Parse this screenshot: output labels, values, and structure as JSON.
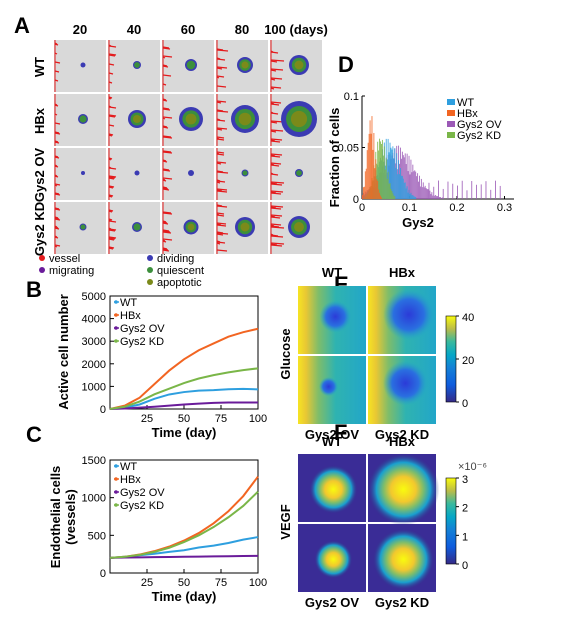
{
  "panelA": {
    "label": "A",
    "days": [
      "20",
      "40",
      "60",
      "80",
      "100 (days)"
    ],
    "rows": [
      "WT",
      "HBx",
      "Gys2 OV",
      "Gys2 KD"
    ],
    "legend": [
      {
        "label": "vessel",
        "color": "#e41a1c"
      },
      {
        "label": "migrating",
        "color": "#6a1b9a"
      },
      {
        "label": "dividing",
        "color": "#3b3bb3"
      },
      {
        "label": "quiescent",
        "color": "#3c8f3c"
      },
      {
        "label": "apoptotic",
        "color": "#7b8a1a"
      }
    ],
    "tumor_radius": [
      [
        2.5,
        4,
        6,
        8,
        10
      ],
      [
        5,
        9,
        12,
        14,
        18
      ],
      [
        2,
        2.5,
        3,
        3.5,
        4
      ],
      [
        3.5,
        5,
        7.5,
        10,
        11
      ]
    ]
  },
  "panelB": {
    "label": "B",
    "chart_data": {
      "type": "line",
      "xlabel": "Time (day)",
      "ylabel": "Active cell number",
      "xlim": [
        0,
        100
      ],
      "ylim": [
        0,
        5000
      ],
      "xticks": [
        25,
        50,
        75,
        100
      ],
      "yticks": [
        0,
        1000,
        2000,
        3000,
        4000,
        5000
      ],
      "x": [
        0,
        10,
        20,
        30,
        40,
        50,
        60,
        70,
        80,
        90,
        100
      ],
      "series": [
        {
          "name": "WT",
          "color": "#2e9fdf",
          "values": [
            0,
            60,
            200,
            450,
            640,
            760,
            800,
            840,
            880,
            880,
            880
          ]
        },
        {
          "name": "HBx",
          "color": "#f26522",
          "values": [
            0,
            150,
            500,
            1100,
            1700,
            2200,
            2600,
            2900,
            3200,
            3400,
            3550
          ]
        },
        {
          "name": "Gys2 OV",
          "color": "#6a1b9a",
          "values": [
            0,
            20,
            60,
            100,
            150,
            200,
            240,
            270,
            290,
            290,
            290
          ]
        },
        {
          "name": "Gys2 KD",
          "color": "#7ab648",
          "values": [
            0,
            100,
            330,
            650,
            900,
            1150,
            1350,
            1500,
            1620,
            1720,
            1800
          ]
        }
      ]
    }
  },
  "panelC": {
    "label": "C",
    "chart_data": {
      "type": "line",
      "xlabel": "Time (day)",
      "ylabel": "Endothelial cells (vessels)",
      "xlim": [
        0,
        100
      ],
      "ylim": [
        0,
        1500
      ],
      "xticks": [
        25,
        50,
        75,
        100
      ],
      "yticks": [
        0,
        500,
        1000,
        1500
      ],
      "x": [
        0,
        10,
        20,
        30,
        40,
        50,
        60,
        70,
        80,
        90,
        100
      ],
      "series": [
        {
          "name": "WT",
          "color": "#2e9fdf",
          "values": [
            200,
            215,
            235,
            255,
            280,
            305,
            335,
            365,
            400,
            440,
            480
          ]
        },
        {
          "name": "HBx",
          "color": "#f26522",
          "values": [
            200,
            215,
            245,
            290,
            350,
            430,
            530,
            660,
            820,
            1020,
            1280
          ]
        },
        {
          "name": "Gys2 OV",
          "color": "#6a1b9a",
          "values": [
            200,
            205,
            208,
            210,
            213,
            215,
            218,
            220,
            223,
            225,
            228
          ]
        },
        {
          "name": "Gys2 KD",
          "color": "#7ab648",
          "values": [
            200,
            215,
            240,
            280,
            335,
            410,
            500,
            610,
            740,
            890,
            1080
          ]
        }
      ]
    }
  },
  "panelD": {
    "label": "D",
    "chart_data": {
      "type": "bar",
      "xlabel": "Gys2",
      "ylabel": "Fraction of cells",
      "xlim": [
        0,
        0.32
      ],
      "ylim": [
        0,
        0.1
      ],
      "xticks": [
        0,
        0.1,
        0.2,
        0.3
      ],
      "yticks": [
        0,
        0.05,
        0.1
      ],
      "series": [
        {
          "name": "WT",
          "color": "#2e9fdf",
          "mean": 0.055,
          "sd": 0.022,
          "peak": 0.06
        },
        {
          "name": "HBx",
          "color": "#f26522",
          "mean": 0.018,
          "sd": 0.008,
          "peak": 0.085
        },
        {
          "name": "Gys2 OV",
          "color": "#9b59b6",
          "mean": 0.075,
          "sd": 0.035,
          "peak": 0.052
        },
        {
          "name": "Gys2 KD",
          "color": "#7ab648",
          "mean": 0.038,
          "sd": 0.012,
          "peak": 0.065
        }
      ]
    }
  },
  "panelE": {
    "label": "E",
    "col_labels": [
      "WT",
      "HBx"
    ],
    "bottom_labels": [
      "Gys2 OV",
      "Gys2 KD"
    ],
    "ylabel": "Glucose",
    "colorbar_ticks": [
      "40",
      "20",
      "0"
    ]
  },
  "panelF": {
    "label": "F",
    "col_labels": [
      "WT",
      "HBx"
    ],
    "bottom_labels": [
      "Gys2 OV",
      "Gys2 KD"
    ],
    "ylabel": "VEGF",
    "colorbar_ticks": [
      "3",
      "2",
      "1",
      "0"
    ],
    "colorbar_exponent": "×10⁻⁶",
    "spot_scale": [
      0.55,
      1.0,
      0.35,
      0.8
    ]
  }
}
